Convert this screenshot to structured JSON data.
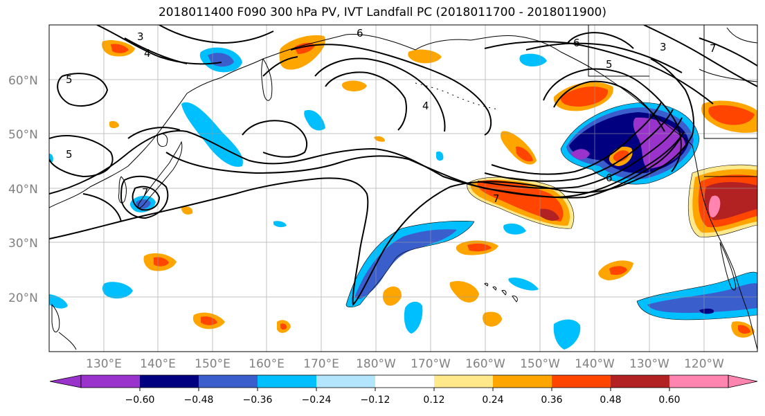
{
  "title": "2018011400 F090 300 hPa PV, IVT Landfall PC (2018011700 - 2018011900)",
  "lat_labels": [
    "20°N",
    "30°N",
    "40°N",
    "50°N",
    "60°N"
  ],
  "lon_labels": [
    "130°E",
    "140°E",
    "150°E",
    "160°E",
    "170°E",
    "180°W",
    "170°W",
    "160°W",
    "150°W",
    "140°W",
    "130°W",
    "120°W"
  ],
  "contour_labels": [
    "3",
    "4",
    "5",
    "5",
    "6",
    "6",
    "4",
    "5",
    "6",
    "7",
    "7",
    "3",
    "7"
  ],
  "colorbar": {
    "ticks": [
      "−0.60",
      "−0.48",
      "−0.36",
      "−0.24",
      "−0.12",
      "0.12",
      "0.24",
      "0.36",
      "0.48",
      "0.60"
    ],
    "colors": [
      "#9933cc",
      "#000080",
      "#3a5fcd",
      "#00bfff",
      "#b3e5fc",
      "#ffffff",
      "#ffe98a",
      "#ffa500",
      "#ff4500",
      "#b22222",
      "#ff85b0"
    ]
  },
  "colors": {
    "purple": "#9933cc",
    "navy": "#000080",
    "blue": "#3a5fcd",
    "cyan": "#00bfff",
    "lightblue": "#b3e5fc",
    "yellow": "#ffe98a",
    "orange": "#ffa500",
    "redorange": "#ff4500",
    "darkred": "#b22222",
    "pink": "#ff85b0"
  }
}
